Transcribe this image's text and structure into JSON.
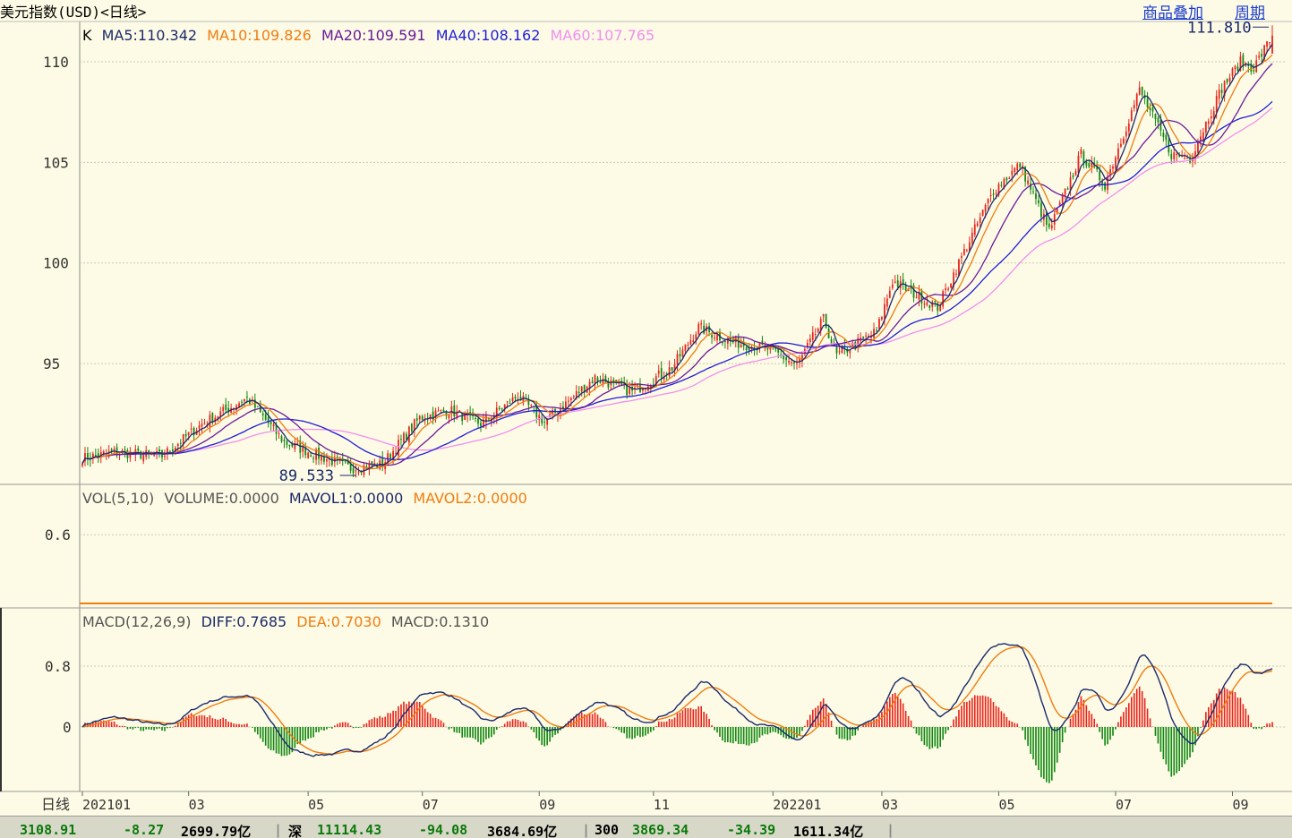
{
  "header": {
    "title": "美元指数(USD)<日线>",
    "link_overlay": "商品叠加",
    "link_period": "周期"
  },
  "kline_legend": {
    "prefix": "K",
    "items": [
      {
        "text": "MA5:110.342",
        "color": "#1b2a6b"
      },
      {
        "text": "MA10:109.826",
        "color": "#f07c10"
      },
      {
        "text": "MA20:109.591",
        "color": "#6a1b9a"
      },
      {
        "text": "MA40:108.162",
        "color": "#1e1ed8"
      },
      {
        "text": "MA60:107.765",
        "color": "#f08ef0"
      }
    ]
  },
  "vol_legend": {
    "items": [
      {
        "text": "VOL(5,10)",
        "color": "#555555"
      },
      {
        "text": "VOLUME:0.0000",
        "color": "#555555"
      },
      {
        "text": "MAVOL1:0.0000",
        "color": "#1b2a6b"
      },
      {
        "text": "MAVOL2:0.0000",
        "color": "#f07c10"
      }
    ]
  },
  "macd_legend": {
    "items": [
      {
        "text": "MACD(12,26,9)",
        "color": "#555555"
      },
      {
        "text": "DIFF:0.7685",
        "color": "#1b2a6b"
      },
      {
        "text": "DEA:0.7030",
        "color": "#f07c10"
      },
      {
        "text": "MACD:0.1310",
        "color": "#555555"
      }
    ]
  },
  "x_axis_label": "日线",
  "status_bar": [
    {
      "text": "3108.91",
      "cls": "g"
    },
    {
      "text": "-8.27",
      "cls": "g"
    },
    {
      "text": "2699.79亿",
      "cls": "k"
    },
    {
      "text": "深",
      "cls": "k"
    },
    {
      "text": "11114.43",
      "cls": "g"
    },
    {
      "text": "-94.08",
      "cls": "g"
    },
    {
      "text": "3684.69亿",
      "cls": "k"
    },
    {
      "text": "300",
      "cls": "k"
    },
    {
      "text": "3869.34",
      "cls": "g"
    },
    {
      "text": "-34.39",
      "cls": "g"
    },
    {
      "text": "1611.34亿",
      "cls": "k"
    }
  ],
  "colors": {
    "up": "#e8241c",
    "down": "#118811",
    "ma5": "#1b2a6b",
    "ma10": "#f07c10",
    "ma20": "#6a1b9a",
    "ma40": "#1e1ed8",
    "ma60": "#f08ef0",
    "grid": "#c9c9b4",
    "axis": "#888888",
    "vol_line": "#f07c10"
  },
  "chart_data": [
    {
      "type": "candlestick",
      "panel": "price",
      "y_ticks": [
        95,
        100,
        105,
        110
      ],
      "ylim": [
        89.0,
        112.0
      ],
      "annotations": [
        {
          "text": "111.810",
          "value": 111.81,
          "kind": "high"
        },
        {
          "text": "89.533",
          "value": 89.533,
          "kind": "low"
        }
      ],
      "x_ticks": [
        "202101",
        "03",
        "05",
        "07",
        "09",
        "11",
        "202201",
        "03",
        "05",
        "07",
        "09"
      ],
      "x_tick_dates": [
        "2021-01-04",
        "2021-03-01",
        "2021-05-03",
        "2021-07-01",
        "2021-09-01",
        "2021-11-01",
        "2022-01-03",
        "2022-03-01",
        "2022-05-02",
        "2022-07-01",
        "2022-09-01"
      ],
      "date_range": [
        "2021-01-04",
        "2022-09-22"
      ],
      "trend_anchors": [
        {
          "date": "2021-01-04",
          "close": 90.3
        },
        {
          "date": "2021-01-20",
          "close": 90.6
        },
        {
          "date": "2021-02-15",
          "close": 90.4
        },
        {
          "date": "2021-03-08",
          "close": 92.0
        },
        {
          "date": "2021-03-31",
          "close": 93.3
        },
        {
          "date": "2021-04-20",
          "close": 91.1
        },
        {
          "date": "2021-05-25",
          "close": 89.8
        },
        {
          "date": "2021-06-10",
          "close": 90.0
        },
        {
          "date": "2021-06-30",
          "close": 92.3
        },
        {
          "date": "2021-07-15",
          "close": 92.7
        },
        {
          "date": "2021-08-02",
          "close": 92.0
        },
        {
          "date": "2021-08-20",
          "close": 93.4
        },
        {
          "date": "2021-09-03",
          "close": 92.1
        },
        {
          "date": "2021-09-30",
          "close": 94.3
        },
        {
          "date": "2021-10-20",
          "close": 93.6
        },
        {
          "date": "2021-11-10",
          "close": 94.8
        },
        {
          "date": "2021-11-24",
          "close": 96.8
        },
        {
          "date": "2021-12-10",
          "close": 96.1
        },
        {
          "date": "2021-12-31",
          "close": 95.7
        },
        {
          "date": "2022-01-14",
          "close": 94.9
        },
        {
          "date": "2022-01-28",
          "close": 97.2
        },
        {
          "date": "2022-02-04",
          "close": 95.4
        },
        {
          "date": "2022-02-25",
          "close": 96.6
        },
        {
          "date": "2022-03-07",
          "close": 99.1
        },
        {
          "date": "2022-03-30",
          "close": 97.8
        },
        {
          "date": "2022-04-28",
          "close": 103.6
        },
        {
          "date": "2022-05-12",
          "close": 104.9
        },
        {
          "date": "2022-05-27",
          "close": 101.6
        },
        {
          "date": "2022-06-14",
          "close": 105.4
        },
        {
          "date": "2022-06-27",
          "close": 103.9
        },
        {
          "date": "2022-07-14",
          "close": 108.6
        },
        {
          "date": "2022-08-01",
          "close": 105.4
        },
        {
          "date": "2022-08-10",
          "close": 105.2
        },
        {
          "date": "2022-08-26",
          "close": 108.7
        },
        {
          "date": "2022-09-06",
          "close": 110.0
        },
        {
          "date": "2022-09-13",
          "close": 109.7
        },
        {
          "date": "2022-09-22",
          "close": 111.3
        }
      ],
      "last_ma": {
        "MA5": 110.342,
        "MA10": 109.826,
        "MA20": 109.591,
        "MA40": 108.162,
        "MA60": 107.765
      }
    },
    {
      "type": "line",
      "panel": "volume",
      "y_ticks": [
        0.6
      ],
      "ylim": [
        0,
        1.0
      ],
      "series": [
        {
          "name": "VOLUME",
          "constant": 0.0
        },
        {
          "name": "MAVOL1",
          "constant": 0.0
        },
        {
          "name": "MAVOL2",
          "constant": 0.0
        }
      ]
    },
    {
      "type": "macd",
      "panel": "macd",
      "y_ticks": [
        0,
        0.8
      ],
      "ylim": [
        -0.85,
        1.3
      ],
      "series": [
        {
          "name": "DIFF",
          "last": 0.7685
        },
        {
          "name": "DEA",
          "last": 0.703
        },
        {
          "name": "MACD",
          "last": 0.131
        }
      ]
    }
  ]
}
